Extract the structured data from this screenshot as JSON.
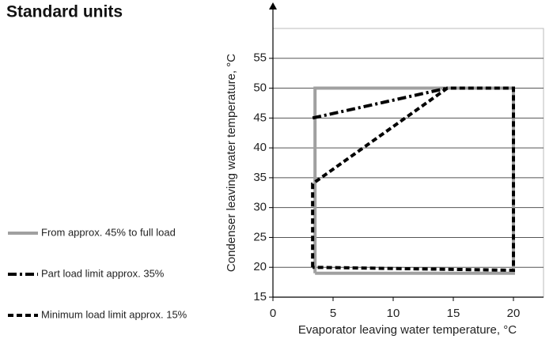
{
  "chart_data": {
    "type": "line",
    "title": "Standard units",
    "x_label": "Evaporator leaving water temperature, °C",
    "y_label": "Condenser leaving water temperature, °C",
    "xlim": [
      0,
      22.5
    ],
    "ylim": [
      15,
      60
    ],
    "xticks": [
      0,
      5,
      10,
      15,
      20
    ],
    "yticks": [
      15,
      20,
      25,
      30,
      35,
      40,
      45,
      50,
      55
    ],
    "grid": true,
    "legend": "left",
    "series": [
      {
        "name": "From approx. 45% to full load",
        "color": "#a0a0a0",
        "dash": "solid",
        "x": [
          3.5,
          3.5,
          20,
          20,
          3.5
        ],
        "values": [
          19,
          50,
          50,
          19,
          19
        ]
      },
      {
        "name": "Part load limit approx. 35%",
        "color": "#000000",
        "dash": "dashdot",
        "x": [
          3.3,
          14.5
        ],
        "values": [
          45,
          50
        ]
      },
      {
        "name": "Minimum load limit approx. 15%",
        "color": "#000000",
        "dash": "dashed",
        "x": [
          3.3,
          3.3,
          14.5,
          20,
          20,
          3.3
        ],
        "values": [
          20,
          34,
          50,
          50,
          19.5,
          20
        ]
      }
    ]
  }
}
